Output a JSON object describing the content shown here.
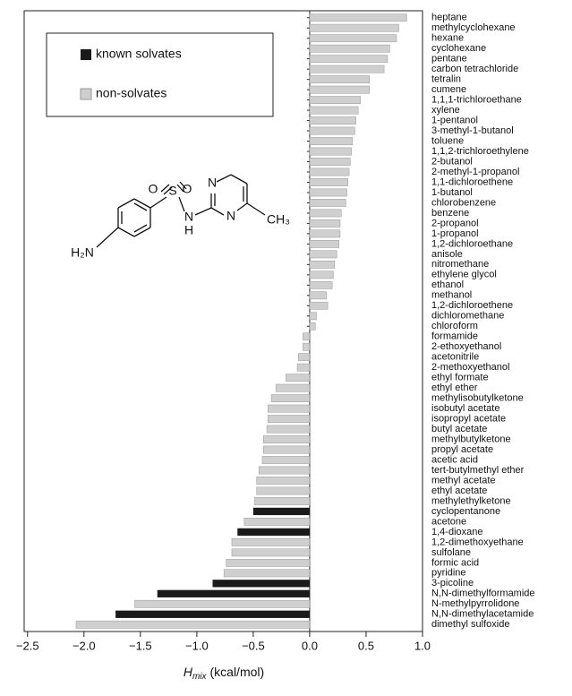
{
  "chart_data": {
    "type": "barh",
    "categories": [
      "heptane",
      "methylcyclohexane",
      "hexane",
      "cyclohexane",
      "pentane",
      "carbon tetrachloride",
      "tetralin",
      "cumene",
      "1,1,1-trichloroethane",
      "xylene",
      "1-pentanol",
      "3-methyl-1-butanol",
      "toluene",
      "1,1,2-trichloroethylene",
      "2-butanol",
      "2-methyl-1-propanol",
      "1,1-dichloroethene",
      "1-butanol",
      "chlorobenzene",
      "benzene",
      "2-propanol",
      "1-propanol",
      "1,2-dichloroethane",
      "anisole",
      "nitromethane",
      "ethylene glycol",
      "ethanol",
      "methanol",
      "1,2-dichloroethene",
      "dichloromethane",
      "chloroform",
      "formamide",
      "2-ethoxyethanol",
      "acetonitrile",
      "2-methoxyethanol",
      "ethyl formate",
      "ethyl ether",
      "methylisobutylketone",
      "isobutyl acetate",
      "isopropyl acetate",
      "butyl acetate",
      "methylbutylketone",
      "propyl acetate",
      "acetic acid",
      "tert-butylmethyl ether",
      "methyl acetate",
      "ethyl acetate",
      "methylethylketone",
      "cyclopentanone",
      "acetone",
      "1,4-dioxane",
      "1,2-dimethoxyethane",
      "sulfolane",
      "formic acid",
      "pyridine",
      "3-picoline",
      "N,N-dimethylformamide",
      "N-methylpyrrolidone",
      "N,N-dimethylacetamide",
      "dimethyl sulfoxide"
    ],
    "series": [
      {
        "name": "known solvates",
        "color": "#1a1a1a",
        "values": [
          null,
          null,
          null,
          null,
          null,
          null,
          null,
          null,
          null,
          null,
          null,
          null,
          null,
          null,
          null,
          null,
          null,
          null,
          null,
          null,
          null,
          null,
          null,
          null,
          null,
          null,
          null,
          null,
          null,
          null,
          null,
          null,
          null,
          null,
          null,
          null,
          null,
          null,
          null,
          null,
          null,
          null,
          null,
          null,
          null,
          null,
          null,
          null,
          -0.5,
          null,
          -0.64,
          null,
          null,
          null,
          null,
          -0.86,
          -1.35,
          null,
          -1.72,
          null
        ]
      },
      {
        "name": "non-solvates",
        "color": "#cfcfcf",
        "values": [
          0.86,
          0.79,
          0.77,
          0.71,
          0.69,
          0.66,
          0.53,
          0.53,
          0.45,
          0.43,
          0.41,
          0.4,
          0.38,
          0.37,
          0.36,
          0.35,
          0.34,
          0.33,
          0.32,
          0.28,
          0.27,
          0.27,
          0.26,
          0.24,
          0.22,
          0.21,
          0.2,
          0.15,
          0.16,
          0.06,
          0.05,
          -0.06,
          -0.06,
          -0.1,
          -0.11,
          -0.21,
          -0.3,
          -0.34,
          -0.37,
          -0.37,
          -0.38,
          -0.41,
          -0.41,
          -0.42,
          -0.45,
          -0.47,
          -0.47,
          -0.49,
          null,
          -0.58,
          null,
          -0.69,
          -0.69,
          -0.74,
          -0.76,
          null,
          null,
          -1.55,
          null,
          -2.07
        ]
      }
    ],
    "xlim": [
      -2.53,
      1.0
    ],
    "xticks": [
      {
        "value": -2.5,
        "label": "−2.5"
      },
      {
        "value": -2.0,
        "label": "−2.0"
      },
      {
        "value": -1.5,
        "label": "−1.5"
      },
      {
        "value": -1.0,
        "label": "−1.0"
      },
      {
        "value": -0.5,
        "label": "−0.5"
      },
      {
        "value": 0,
        "label": "0.0"
      },
      {
        "value": 0.5,
        "label": "0.5"
      },
      {
        "value": 1.0,
        "label": "1.0"
      }
    ],
    "x_label": {
      "symbol": "H",
      "subscript": "mix",
      "unit": "(kcal/mol)"
    },
    "legend": "top-left",
    "structure_labels": {
      "o1": "O",
      "o2": "O",
      "s": "S",
      "n1": "N",
      "h": "H",
      "n2": "N",
      "n3": "N",
      "ch3": "CH₃",
      "amine": "H₂N"
    }
  }
}
